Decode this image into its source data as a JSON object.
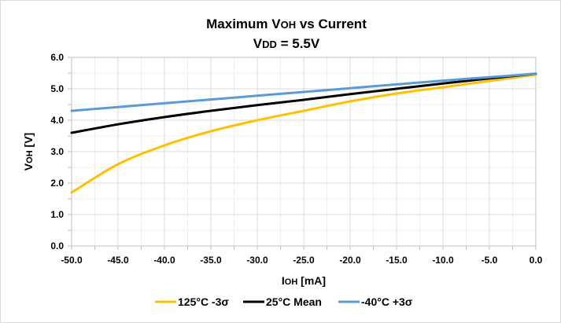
{
  "chart_data": {
    "type": "line",
    "title_line1_main": "Maximum V",
    "title_line1_sub": "OH",
    "title_line1_rest": " vs Current",
    "title_line2_main": "V",
    "title_line2_sub": "DD",
    "title_line2_rest": " = 5.5V",
    "xlabel_main": "I",
    "xlabel_sub": "OH",
    "xlabel_rest": " [mA]",
    "ylabel_main": "V",
    "ylabel_sub": "OH",
    "ylabel_rest": " [V]",
    "xlim": [
      -50,
      0
    ],
    "ylim": [
      0,
      6
    ],
    "x_ticks": [
      "-50.0",
      "-45.0",
      "-40.0",
      "-35.0",
      "-30.0",
      "-25.0",
      "-20.0",
      "-15.0",
      "-10.0",
      "-5.0",
      "0.0"
    ],
    "y_ticks": [
      "0.0",
      "1.0",
      "2.0",
      "3.0",
      "4.0",
      "5.0",
      "6.0"
    ],
    "x_tick_values": [
      -50,
      -45,
      -40,
      -35,
      -30,
      -25,
      -20,
      -15,
      -10,
      -5,
      0
    ],
    "y_tick_values": [
      0,
      1,
      2,
      3,
      4,
      5,
      6
    ],
    "grid": true,
    "legend_position": "bottom",
    "x": [
      -50,
      -45,
      -40,
      -35,
      -30,
      -25,
      -20,
      -15,
      -10,
      -5,
      0
    ],
    "series": [
      {
        "name": "125°C -3σ",
        "color": "#FFC000",
        "values": [
          1.7,
          2.6,
          3.2,
          3.65,
          4.0,
          4.3,
          4.6,
          4.85,
          5.05,
          5.25,
          5.45
        ]
      },
      {
        "name": "25°C Mean",
        "color": "#000000",
        "values": [
          3.6,
          3.87,
          4.1,
          4.3,
          4.48,
          4.65,
          4.83,
          5.0,
          5.17,
          5.33,
          5.48
        ]
      },
      {
        "name": "-40°C +3σ",
        "color": "#5B9BD5",
        "values": [
          4.3,
          4.42,
          4.54,
          4.66,
          4.78,
          4.9,
          5.02,
          5.14,
          5.26,
          5.37,
          5.48
        ]
      }
    ]
  },
  "legend": {
    "items": [
      {
        "label": "125°C -3σ",
        "color": "#FFC000"
      },
      {
        "label": "25°C Mean",
        "color": "#000000"
      },
      {
        "label": "-40°C +3σ",
        "color": "#5B9BD5"
      }
    ]
  }
}
